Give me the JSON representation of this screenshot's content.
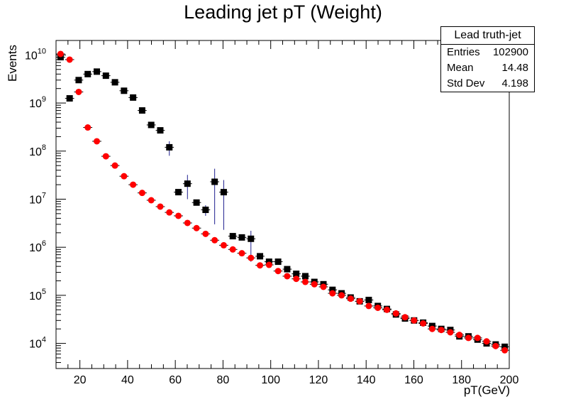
{
  "chart_data": {
    "type": "scatter",
    "title": "Leading jet pT (Weight)",
    "xlabel": "pT(GeV)",
    "ylabel": "Events",
    "xlim": [
      10,
      200
    ],
    "ylim": [
      3000,
      20000000000
    ],
    "yscale": "log",
    "grid": false,
    "x_ticks": [
      "20",
      "40",
      "60",
      "80",
      "100",
      "120",
      "140",
      "160",
      "180",
      "200"
    ],
    "y_ticks": [
      {
        "base": "10",
        "exp": "4"
      },
      {
        "base": "10",
        "exp": "5"
      },
      {
        "base": "10",
        "exp": "6"
      },
      {
        "base": "10",
        "exp": "7"
      },
      {
        "base": "10",
        "exp": "8"
      },
      {
        "base": "10",
        "exp": "9"
      },
      {
        "base": "10",
        "exp": "10"
      }
    ],
    "bin_width": 3.8,
    "series": [
      {
        "color": "#000000",
        "marker": "square",
        "x": [
          11.9,
          15.7,
          19.5,
          23.3,
          27.1,
          30.9,
          34.7,
          38.5,
          42.3,
          46.1,
          49.9,
          53.7,
          57.5,
          61.3,
          65.1,
          68.9,
          72.7,
          76.5,
          80.3,
          84.1,
          87.9,
          91.7,
          95.5,
          99.3,
          103.1,
          106.9,
          110.7,
          114.5,
          118.3,
          122.1,
          125.9,
          129.7,
          133.5,
          137.3,
          141.1,
          144.9,
          148.7,
          152.5,
          156.3,
          160.1,
          163.9,
          167.7,
          171.5,
          175.3,
          179.1,
          182.9,
          186.7,
          190.5,
          194.3,
          198.1
        ],
        "y": [
          9000000000,
          1250000000,
          3000000000,
          4000000000,
          4500000000,
          3700000000,
          2700000000,
          1800000000,
          1300000000,
          700000000,
          350000000,
          270000000,
          120000000,
          14000000,
          21000000,
          8500000,
          6000000,
          23000000,
          14000000,
          1700000,
          1600000,
          1500000,
          650000,
          500000,
          500000,
          350000,
          280000,
          250000,
          190000,
          170000,
          130000,
          110000,
          90000,
          75000,
          80000,
          60000,
          52000,
          40000,
          33000,
          30000,
          27000,
          23000,
          20000,
          19000,
          14000,
          14000,
          12000,
          10000,
          9500,
          8500
        ],
        "err_low": [
          0,
          0,
          0,
          0,
          0,
          0,
          0,
          0,
          0,
          0,
          0,
          0,
          40000000,
          0,
          11000000,
          0,
          1500000,
          20000000,
          11700000,
          0,
          0,
          1000000,
          0,
          0,
          0,
          0,
          0,
          0,
          0,
          0,
          0,
          0,
          0,
          0,
          0,
          0,
          0,
          0,
          0,
          0,
          0,
          0,
          0,
          0,
          0,
          0,
          0,
          0,
          0,
          0
        ],
        "err_high": [
          0,
          0,
          0,
          0,
          0,
          0,
          0,
          0,
          0,
          0,
          0,
          0,
          40000000,
          0,
          11000000,
          0,
          1500000,
          20000000,
          11000000,
          0,
          0,
          700000,
          0,
          0,
          0,
          0,
          0,
          0,
          0,
          0,
          0,
          0,
          0,
          0,
          0,
          0,
          0,
          0,
          0,
          0,
          0,
          0,
          0,
          0,
          0,
          0,
          0,
          0,
          0,
          0
        ]
      },
      {
        "color": "#ff0000",
        "marker": "circle",
        "x": [
          11.9,
          15.7,
          19.5,
          23.3,
          27.1,
          30.9,
          34.7,
          38.5,
          42.3,
          46.1,
          49.9,
          53.7,
          57.5,
          61.3,
          65.1,
          68.9,
          72.7,
          76.5,
          80.3,
          84.1,
          87.9,
          91.7,
          95.5,
          99.3,
          103.1,
          106.9,
          110.7,
          114.5,
          118.3,
          122.1,
          125.9,
          129.7,
          133.5,
          137.3,
          141.1,
          144.9,
          148.7,
          152.5,
          156.3,
          160.1,
          163.9,
          167.7,
          171.5,
          175.3,
          179.1,
          182.9,
          186.7,
          190.5,
          194.3,
          198.1
        ],
        "y": [
          10500000000,
          8000000000,
          1700000000,
          310000000,
          160000000,
          78000000,
          50000000,
          30000000,
          20000000,
          13500000,
          9500000,
          7000000,
          5300000,
          4500000,
          3200000,
          2500000,
          1900000,
          1400000,
          1100000,
          900000,
          750000,
          600000,
          420000,
          430000,
          320000,
          250000,
          220000,
          190000,
          170000,
          150000,
          110000,
          100000,
          85000,
          75000,
          60000,
          55000,
          50000,
          42000,
          35000,
          30000,
          26000,
          20000,
          19000,
          17000,
          15000,
          13000,
          13000,
          11000,
          8800,
          7200
        ]
      }
    ],
    "stats_box": {
      "name": "Lead truth-jet",
      "entries_label": "Entries",
      "entries_value": "102900",
      "mean_label": "Mean",
      "mean_value": "14.48",
      "stddev_label": "Std Dev",
      "stddev_value": "4.198"
    }
  }
}
